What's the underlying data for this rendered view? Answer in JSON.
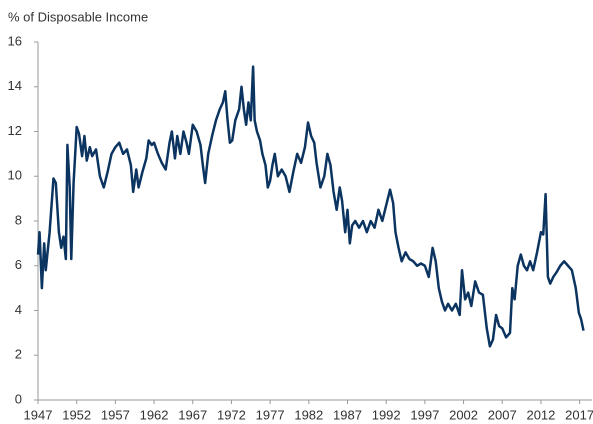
{
  "chart_data": {
    "type": "line",
    "y_label": "% of Disposable Income",
    "color": "#0b3460",
    "grid": false,
    "xlim": [
      1947,
      2018.6
    ],
    "ylim": [
      0,
      16
    ],
    "xticks": [
      1947,
      1952,
      1957,
      1962,
      1967,
      1972,
      1977,
      1982,
      1987,
      1992,
      1997,
      2002,
      2007,
      2012,
      2017
    ],
    "yticks": [
      0,
      2,
      4,
      6,
      8,
      10,
      12,
      14,
      16
    ],
    "x": [
      1947.0,
      1947.2,
      1947.5,
      1947.8,
      1948.0,
      1948.5,
      1949.0,
      1949.3,
      1949.7,
      1950.0,
      1950.3,
      1950.6,
      1950.8,
      1951.1,
      1951.3,
      1951.6,
      1952.0,
      1952.3,
      1952.7,
      1953.0,
      1953.3,
      1953.7,
      1954.0,
      1954.5,
      1955.0,
      1955.5,
      1956.0,
      1956.5,
      1957.0,
      1957.5,
      1958.0,
      1958.5,
      1959.0,
      1959.3,
      1959.7,
      1960.0,
      1960.5,
      1961.0,
      1961.3,
      1961.7,
      1962.0,
      1962.5,
      1963.0,
      1963.5,
      1964.0,
      1964.3,
      1964.7,
      1965.0,
      1965.4,
      1965.8,
      1966.2,
      1966.5,
      1967.0,
      1967.5,
      1968.0,
      1968.3,
      1968.6,
      1969.0,
      1969.5,
      1970.0,
      1970.5,
      1970.9,
      1971.2,
      1971.5,
      1971.8,
      1972.1,
      1972.5,
      1973.0,
      1973.3,
      1973.6,
      1973.9,
      1974.2,
      1974.5,
      1974.8,
      1975.0,
      1975.3,
      1975.7,
      1976.0,
      1976.4,
      1976.7,
      1977.0,
      1977.3,
      1977.6,
      1978.0,
      1978.5,
      1979.0,
      1979.5,
      1980.0,
      1980.5,
      1981.0,
      1981.5,
      1981.9,
      1982.3,
      1982.7,
      1983.0,
      1983.5,
      1984.0,
      1984.4,
      1984.8,
      1985.2,
      1985.6,
      1986.0,
      1986.3,
      1986.7,
      1987.0,
      1987.3,
      1987.6,
      1988.0,
      1988.5,
      1989.0,
      1989.5,
      1990.0,
      1990.5,
      1991.0,
      1991.5,
      1992.0,
      1992.5,
      1992.9,
      1993.2,
      1993.6,
      1994.0,
      1994.5,
      1995.0,
      1995.5,
      1996.0,
      1996.5,
      1997.0,
      1997.5,
      1998.0,
      1998.4,
      1998.8,
      1999.2,
      1999.6,
      2000.0,
      2000.5,
      2001.0,
      2001.5,
      2001.8,
      2002.2,
      2002.6,
      2003.0,
      2003.5,
      2004.0,
      2004.5,
      2005.0,
      2005.4,
      2005.8,
      2006.2,
      2006.6,
      2007.0,
      2007.5,
      2008.0,
      2008.3,
      2008.6,
      2009.0,
      2009.4,
      2009.8,
      2010.2,
      2010.6,
      2011.0,
      2011.5,
      2012.0,
      2012.3,
      2012.6,
      2012.9,
      2013.2,
      2013.6,
      2014.0,
      2014.5,
      2015.0,
      2015.5,
      2016.0,
      2016.5,
      2016.9,
      2017.2,
      2017.5
    ],
    "values": [
      6.5,
      7.5,
      5.0,
      7.0,
      5.8,
      7.5,
      9.9,
      9.7,
      7.5,
      6.8,
      7.3,
      6.3,
      11.4,
      9.5,
      6.3,
      9.7,
      12.2,
      11.9,
      10.9,
      11.8,
      10.7,
      11.3,
      10.9,
      11.2,
      10.0,
      9.5,
      10.2,
      11.0,
      11.3,
      11.5,
      11.0,
      11.2,
      10.5,
      9.3,
      10.3,
      9.5,
      10.2,
      10.8,
      11.6,
      11.4,
      11.5,
      11.0,
      10.6,
      10.3,
      11.5,
      12.0,
      10.8,
      11.8,
      11.0,
      12.0,
      11.5,
      11.0,
      12.3,
      12.0,
      11.4,
      10.5,
      9.7,
      11.0,
      11.8,
      12.5,
      13.0,
      13.3,
      13.8,
      12.5,
      11.5,
      11.6,
      12.5,
      13.0,
      14.0,
      13.0,
      12.3,
      13.3,
      12.5,
      14.9,
      12.5,
      12.0,
      11.6,
      11.0,
      10.5,
      9.5,
      9.8,
      10.5,
      11.0,
      10.0,
      10.3,
      10.0,
      9.3,
      10.2,
      11.0,
      10.6,
      11.3,
      12.4,
      11.8,
      11.5,
      10.6,
      9.5,
      10.0,
      11.0,
      10.5,
      9.3,
      8.5,
      9.5,
      8.9,
      7.5,
      8.5,
      7.0,
      7.8,
      8.0,
      7.7,
      8.0,
      7.5,
      8.0,
      7.7,
      8.5,
      8.0,
      8.7,
      9.4,
      8.8,
      7.5,
      6.8,
      6.2,
      6.6,
      6.3,
      6.2,
      6.0,
      6.1,
      6.0,
      5.5,
      6.8,
      6.2,
      5.0,
      4.4,
      4.0,
      4.3,
      4.0,
      4.3,
      3.8,
      5.8,
      4.5,
      4.8,
      4.2,
      5.3,
      4.8,
      4.7,
      3.2,
      2.4,
      2.7,
      3.8,
      3.3,
      3.2,
      2.8,
      3.0,
      5.0,
      4.5,
      6.0,
      6.5,
      6.0,
      5.8,
      6.2,
      5.8,
      6.6,
      7.5,
      7.4,
      9.2,
      5.5,
      5.2,
      5.5,
      5.7,
      6.0,
      6.2,
      6.0,
      5.8,
      5.0,
      3.9,
      3.6,
      3.1
    ]
  }
}
